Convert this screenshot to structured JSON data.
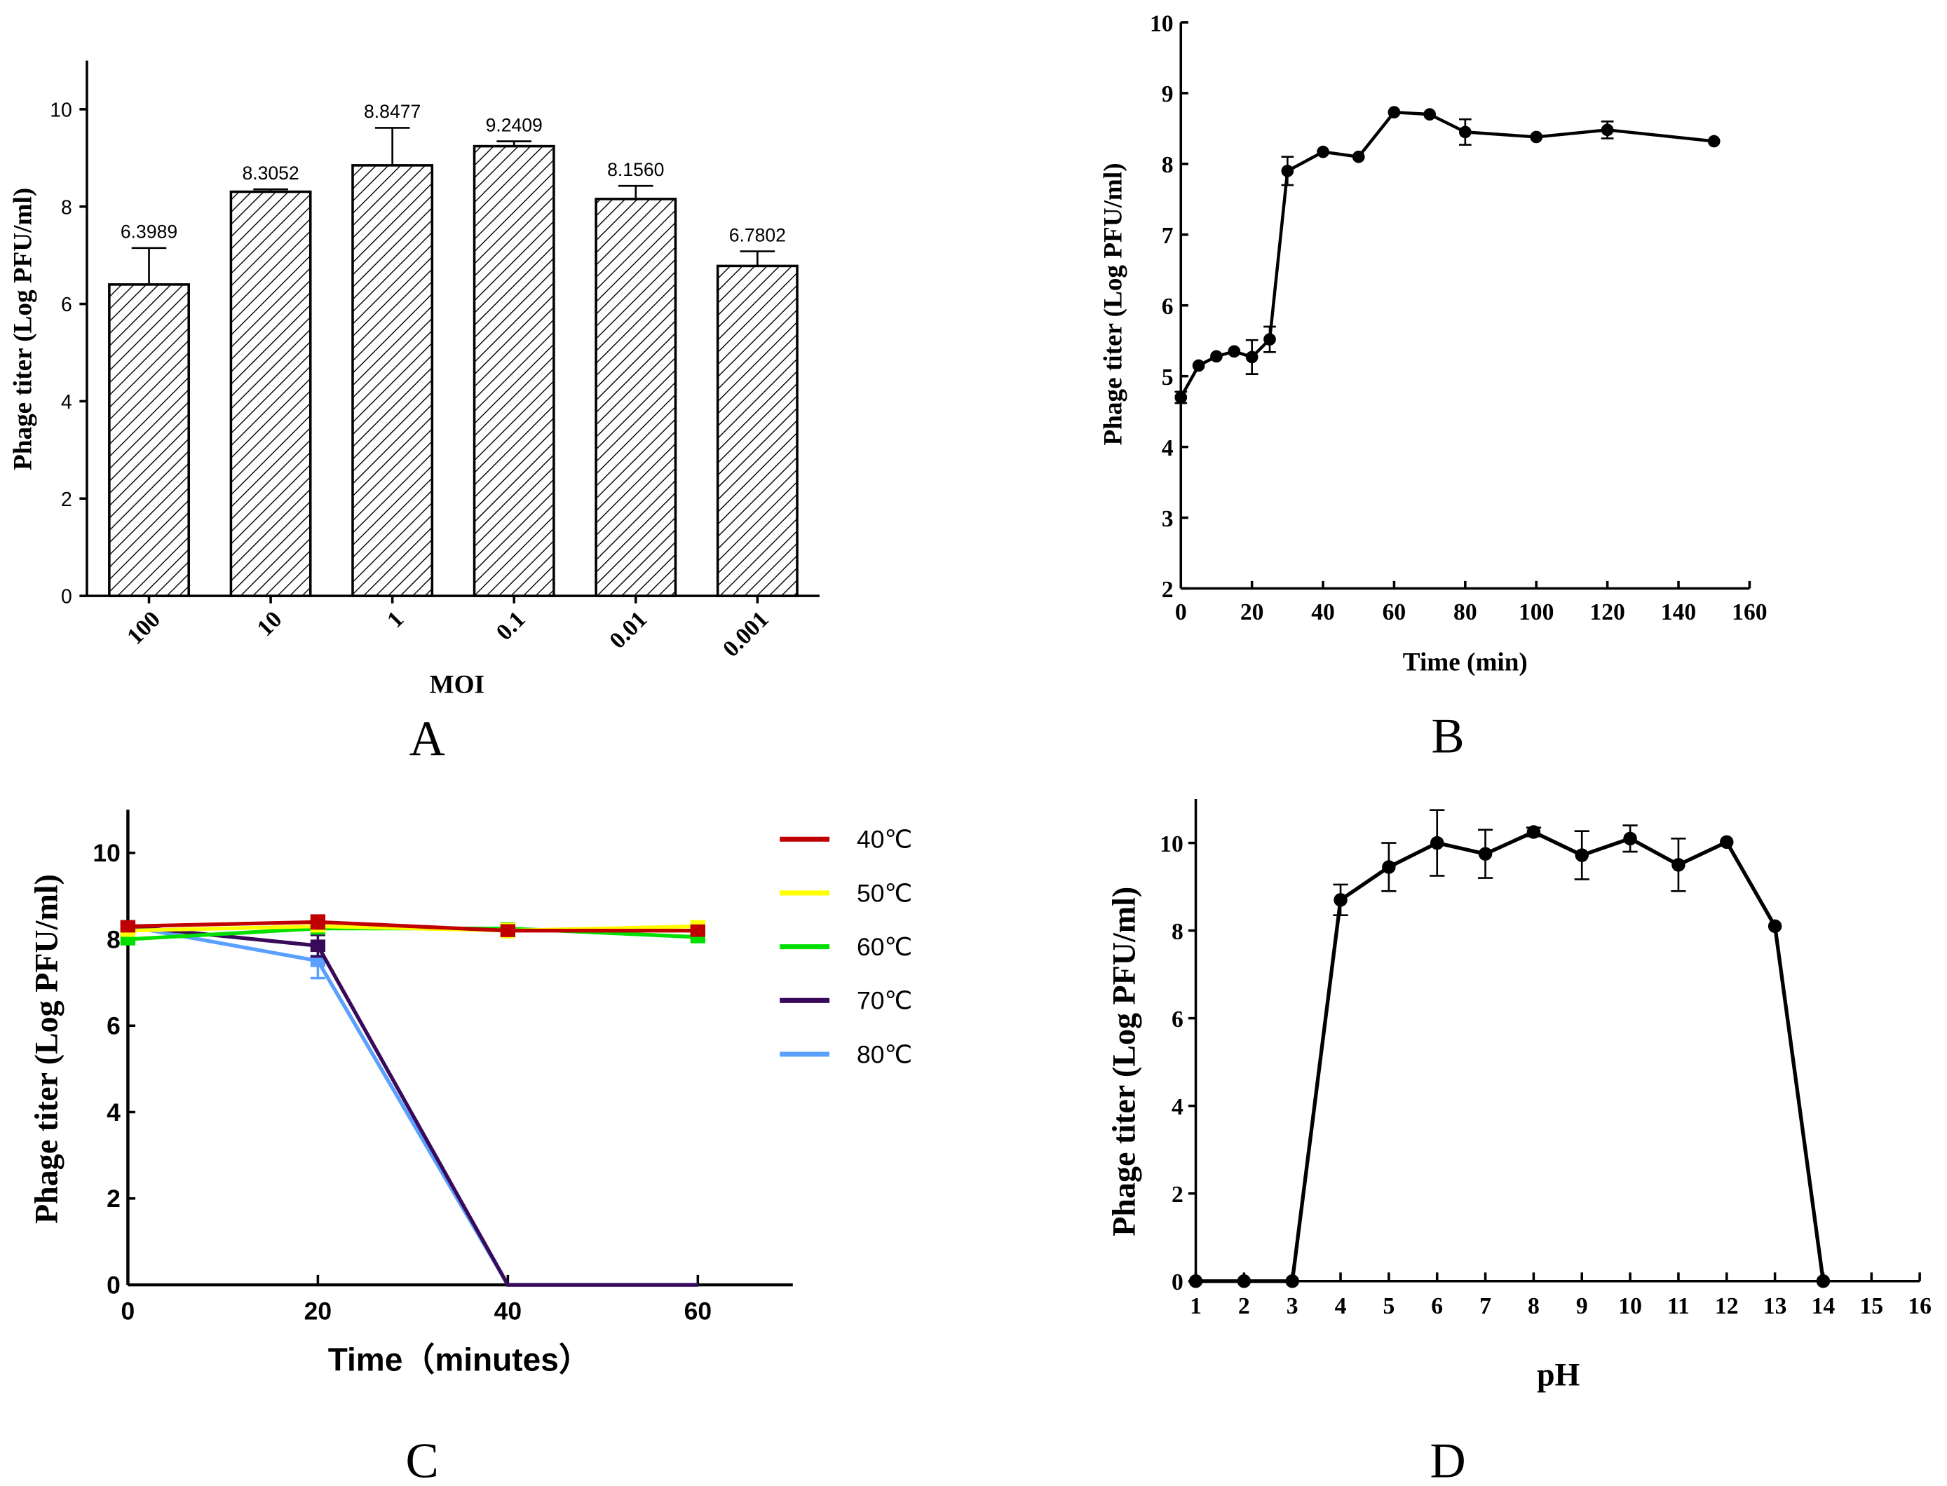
{
  "chart_data": [
    {
      "panel": "A",
      "type": "bar",
      "categories": [
        "100",
        "10",
        "1",
        "0.1",
        "0.01",
        "0.001"
      ],
      "values": [
        6.3989,
        8.3052,
        8.8477,
        9.2409,
        8.156,
        6.7802
      ],
      "data_labels": [
        "6.3989",
        "8.3052",
        "8.8477",
        "9.2409",
        "8.1560",
        "6.7802"
      ],
      "errors": [
        0.75,
        0.05,
        0.77,
        0.1,
        0.27,
        0.3
      ],
      "xlabel": "MOI",
      "ylabel": "Phage titer (Log PFU/ml)",
      "ylim": [
        0,
        11
      ],
      "yticks": [
        "0",
        "2",
        "4",
        "6",
        "8",
        "10"
      ],
      "fill": "diagonal-hatch"
    },
    {
      "panel": "B",
      "type": "line",
      "x": [
        0,
        5,
        10,
        15,
        20,
        25,
        30,
        40,
        50,
        60,
        70,
        80,
        100,
        120,
        150
      ],
      "y": [
        4.7,
        5.15,
        5.28,
        5.35,
        5.27,
        5.52,
        7.9,
        8.17,
        8.1,
        8.73,
        8.7,
        8.45,
        8.38,
        8.48,
        8.32
      ],
      "errors": [
        0.08,
        0.03,
        0.03,
        0.03,
        0.24,
        0.18,
        0.2,
        0.03,
        0.03,
        0.03,
        0.03,
        0.18,
        0.03,
        0.12,
        0.03
      ],
      "xlabel": "Time  (min)",
      "ylabel": "Phage titer (Log PFU/ml)",
      "xlim": [
        0,
        160
      ],
      "ylim": [
        2,
        10
      ],
      "xticks": [
        "0",
        "20",
        "40",
        "60",
        "80",
        "100",
        "120",
        "140",
        "160"
      ],
      "yticks": [
        "2",
        "3",
        "4",
        "5",
        "6",
        "7",
        "8",
        "9",
        "10"
      ]
    },
    {
      "panel": "C",
      "type": "line",
      "x": [
        0,
        20,
        40,
        60
      ],
      "series": [
        {
          "name": "40℃",
          "color": "#c00000",
          "values": [
            8.3,
            8.4,
            8.2,
            8.2
          ],
          "errors": [
            0.08,
            0.15,
            0.12,
            0.08
          ]
        },
        {
          "name": "50℃",
          "color": "#ffff00",
          "values": [
            8.2,
            8.3,
            8.2,
            8.3
          ],
          "errors": [
            0.05,
            0.05,
            0.15,
            0.1
          ]
        },
        {
          "name": "60℃",
          "color": "#00e000",
          "values": [
            8.0,
            8.25,
            8.25,
            8.05
          ],
          "errors": [
            0.08,
            0.05,
            0.05,
            0.06
          ]
        },
        {
          "name": "70℃",
          "color": "#3a0a5a",
          "values": [
            8.3,
            7.85,
            0,
            0
          ],
          "errors": [
            0.03,
            0.25,
            0,
            0
          ]
        },
        {
          "name": "80℃",
          "color": "#5aa0ff",
          "values": [
            8.3,
            7.5,
            0,
            0
          ],
          "errors": [
            0.03,
            0.4,
            0,
            0
          ]
        }
      ],
      "xlabel": "Time（minutes）",
      "ylabel": "Phage titer (Log PFU/ml)",
      "xlim": [
        0,
        70
      ],
      "ylim": [
        0,
        11
      ],
      "xticks": [
        "0",
        "20",
        "40",
        "60"
      ],
      "yticks": [
        "0",
        "2",
        "4",
        "6",
        "8",
        "10"
      ],
      "legend": "right"
    },
    {
      "panel": "D",
      "type": "line",
      "x": [
        1,
        2,
        3,
        4,
        5,
        6,
        7,
        8,
        9,
        10,
        11,
        12,
        13,
        14
      ],
      "y": [
        0,
        0,
        0,
        8.7,
        9.45,
        10.0,
        9.75,
        10.25,
        9.72,
        10.1,
        9.5,
        10.02,
        8.1,
        0
      ],
      "errors": [
        0,
        0,
        0,
        0.35,
        0.55,
        0.75,
        0.55,
        0.1,
        0.55,
        0.3,
        0.6,
        0,
        0,
        0
      ],
      "xlabel": "pH",
      "ylabel": "Phage titer (Log PFU/ml)",
      "xlim": [
        1,
        16
      ],
      "ylim": [
        0,
        11
      ],
      "xticks": [
        "1",
        "2",
        "3",
        "4",
        "5",
        "6",
        "7",
        "8",
        "9",
        "10",
        "11",
        "12",
        "13",
        "14",
        "15",
        "16"
      ],
      "yticks": [
        "0",
        "2",
        "4",
        "6",
        "8",
        "10"
      ]
    }
  ]
}
